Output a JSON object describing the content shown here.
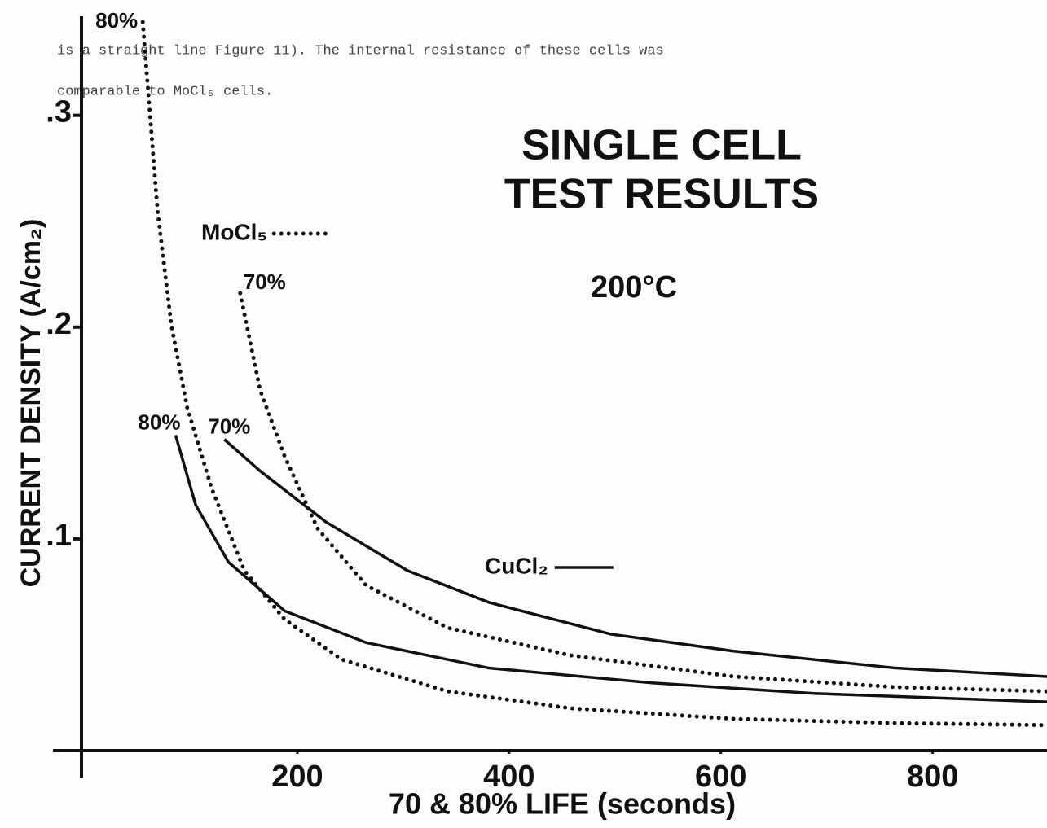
{
  "page_text": [
    "is a straight line Figure 11). The internal resistance of these cells was",
    "comparable to MoCl₅ cells."
  ],
  "chart_data": {
    "type": "line",
    "title_lines": [
      "SINGLE CELL",
      "TEST RESULTS"
    ],
    "subtitle": "200°C",
    "y_label": "CURRENT DENSITY (A/cm₂)",
    "x_label": "70 & 80% LIFE (seconds)",
    "xlim": [
      0,
      908
    ],
    "ylim": [
      0,
      0.346
    ],
    "xticks": [
      200,
      400,
      600,
      800
    ],
    "yticks": [
      {
        "value": 0.1,
        "label": ".1"
      },
      {
        "value": 0.2,
        "label": ".2"
      },
      {
        "value": 0.3,
        "label": ".3"
      }
    ],
    "grid": false,
    "color": "#111111",
    "legend": [
      {
        "name": "MoCl₅",
        "line_style": "dotted"
      },
      {
        "name": "CuCl₂",
        "line_style": "solid"
      }
    ],
    "series": [
      {
        "name": "80%",
        "line_style": "dotted",
        "x": [
          54,
          68,
          81,
          96,
          119,
          150,
          188,
          242,
          342,
          458,
          612,
          765,
          908
        ],
        "values": [
          0.344,
          0.255,
          0.201,
          0.162,
          0.124,
          0.085,
          0.062,
          0.043,
          0.028,
          0.02,
          0.015,
          0.013,
          0.012
        ]
      },
      {
        "name": "70%",
        "line_style": "dotted",
        "x": [
          146,
          165,
          188,
          219,
          265,
          342,
          458,
          612,
          765,
          908
        ],
        "values": [
          0.216,
          0.17,
          0.139,
          0.105,
          0.078,
          0.058,
          0.045,
          0.035,
          0.03,
          0.028
        ]
      },
      {
        "name": "80%",
        "line_style": "solid",
        "x": [
          85,
          104,
          135,
          188,
          265,
          381,
          535,
          688,
          908
        ],
        "values": [
          0.149,
          0.116,
          0.089,
          0.066,
          0.051,
          0.039,
          0.032,
          0.027,
          0.023
        ]
      },
      {
        "name": "70%",
        "line_style": "solid",
        "x": [
          131,
          165,
          227,
          304,
          381,
          496,
          612,
          765,
          908
        ],
        "values": [
          0.147,
          0.132,
          0.108,
          0.085,
          0.07,
          0.055,
          0.047,
          0.039,
          0.035
        ]
      }
    ]
  }
}
